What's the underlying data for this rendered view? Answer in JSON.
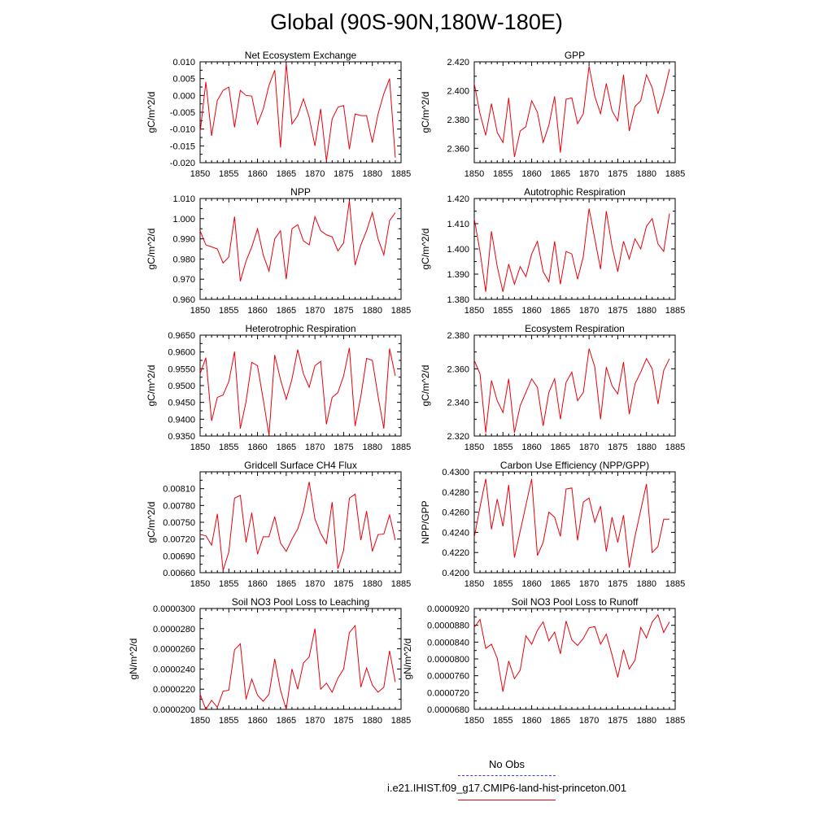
{
  "page": {
    "title": "Global (90S-90N,180W-180E)"
  },
  "legend": {
    "items": [
      {
        "label": "No Obs",
        "color": "#3a3aff",
        "style": "dashed"
      },
      {
        "label": "i.e21.IHIST.f09_g17.CMIP6-land-hist-princeton.001",
        "color": "#e8000b",
        "style": "solid"
      }
    ]
  },
  "chart_data": [
    {
      "type": "line",
      "title": "Net Ecosystem Exchange",
      "ylabel": "gC/m^2/d",
      "x_start": 1850,
      "xlim": [
        1850,
        1885
      ],
      "xticks": [
        "1850",
        "1855",
        "1860",
        "1865",
        "1870",
        "1875",
        "1880",
        "1885"
      ],
      "ylim": [
        -0.02,
        0.01
      ],
      "yticks": [
        "0.010",
        "0.005",
        "0.000",
        "-0.005",
        "-0.010",
        "-0.015",
        "-0.020"
      ],
      "series": [
        {
          "color": "#e8000b",
          "values": [
            -0.011,
            0.004,
            -0.012,
            -0.0015,
            0.0015,
            0.0025,
            -0.0095,
            0.0015,
            0.0,
            -0.0002,
            -0.0085,
            -0.004,
            0.003,
            0.0075,
            -0.0155,
            0.0095,
            -0.0085,
            -0.006,
            -0.001,
            -0.0065,
            -0.015,
            -0.004,
            -0.0195,
            -0.007,
            -0.0035,
            -0.003,
            -0.016,
            -0.0055,
            -0.006,
            -0.006,
            -0.014,
            -0.0055,
            0.0005,
            0.005,
            -0.0185
          ]
        }
      ]
    },
    {
      "type": "line",
      "title": "GPP",
      "ylabel": "gC/m^2/d",
      "x_start": 1850,
      "xlim": [
        1850,
        1885
      ],
      "xticks": [
        "1850",
        "1855",
        "1860",
        "1865",
        "1870",
        "1875",
        "1880",
        "1885"
      ],
      "ylim": [
        2.35,
        2.42
      ],
      "yticks": [
        "2.420",
        "2.400",
        "2.380",
        "2.360"
      ],
      "series": [
        {
          "color": "#e8000b",
          "values": [
            2.405,
            2.384,
            2.369,
            2.391,
            2.371,
            2.364,
            2.395,
            2.354,
            2.372,
            2.375,
            2.393,
            2.385,
            2.364,
            2.376,
            2.396,
            2.357,
            2.394,
            2.395,
            2.377,
            2.384,
            2.417,
            2.396,
            2.384,
            2.405,
            2.386,
            2.379,
            2.411,
            2.372,
            2.389,
            2.393,
            2.411,
            2.402,
            2.384,
            2.398,
            2.415
          ]
        }
      ]
    },
    {
      "type": "line",
      "title": "NPP",
      "ylabel": "gC/m^2/d",
      "x_start": 1850,
      "xlim": [
        1850,
        1885
      ],
      "xticks": [
        "1850",
        "1855",
        "1860",
        "1865",
        "1870",
        "1875",
        "1880",
        "1885"
      ],
      "ylim": [
        0.96,
        1.01
      ],
      "yticks": [
        "1.010",
        "1.000",
        "0.990",
        "0.980",
        "0.970",
        "0.960"
      ],
      "series": [
        {
          "color": "#e8000b",
          "values": [
            0.994,
            0.987,
            0.986,
            0.985,
            0.978,
            0.981,
            1.001,
            0.969,
            0.979,
            0.986,
            0.995,
            0.982,
            0.974,
            0.99,
            0.994,
            0.97,
            0.995,
            0.997,
            0.989,
            0.987,
            1.001,
            0.994,
            0.992,
            0.991,
            0.984,
            0.988,
            1.009,
            0.977,
            0.987,
            0.994,
            1.003,
            0.99,
            0.982,
            0.999,
            1.003
          ]
        }
      ]
    },
    {
      "type": "line",
      "title": "Autotrophic Respiration",
      "ylabel": "gC/m^2/d",
      "x_start": 1850,
      "xlim": [
        1850,
        1885
      ],
      "xticks": [
        "1850",
        "1855",
        "1860",
        "1865",
        "1870",
        "1875",
        "1880",
        "1885"
      ],
      "ylim": [
        1.38,
        1.42
      ],
      "yticks": [
        "1.420",
        "1.410",
        "1.400",
        "1.390",
        "1.380"
      ],
      "series": [
        {
          "color": "#e8000b",
          "values": [
            1.412,
            1.399,
            1.383,
            1.407,
            1.393,
            1.383,
            1.394,
            1.386,
            1.393,
            1.389,
            1.398,
            1.403,
            1.391,
            1.387,
            1.403,
            1.386,
            1.399,
            1.398,
            1.388,
            1.397,
            1.416,
            1.404,
            1.392,
            1.415,
            1.401,
            1.391,
            1.403,
            1.396,
            1.404,
            1.4,
            1.409,
            1.412,
            1.402,
            1.399,
            1.414
          ]
        }
      ]
    },
    {
      "type": "line",
      "title": "Heterotrophic Respiration",
      "ylabel": "gC/m^2/d",
      "x_start": 1850,
      "xlim": [
        1850,
        1885
      ],
      "xticks": [
        "1850",
        "1855",
        "1860",
        "1865",
        "1870",
        "1875",
        "1880",
        "1885"
      ],
      "ylim": [
        0.935,
        0.965
      ],
      "yticks": [
        "0.9650",
        "0.9600",
        "0.9550",
        "0.9500",
        "0.9450",
        "0.9400",
        "0.9350"
      ],
      "series": [
        {
          "color": "#e8000b",
          "values": [
            0.9535,
            0.9583,
            0.9395,
            0.9465,
            0.9472,
            0.9512,
            0.9601,
            0.9372,
            0.9452,
            0.9569,
            0.9559,
            0.9458,
            0.9352,
            0.9591,
            0.9518,
            0.9459,
            0.9519,
            0.9607,
            0.9535,
            0.9495,
            0.9559,
            0.9572,
            0.9385,
            0.9465,
            0.9479,
            0.9529,
            0.9612,
            0.938,
            0.9468,
            0.9581,
            0.9575,
            0.9468,
            0.9372,
            0.961,
            0.9529
          ]
        }
      ]
    },
    {
      "type": "line",
      "title": "Ecosystem Respiration",
      "ylabel": "gC/m^2/d",
      "x_start": 1850,
      "xlim": [
        1850,
        1885
      ],
      "xticks": [
        "1850",
        "1855",
        "1860",
        "1865",
        "1870",
        "1875",
        "1880",
        "1885"
      ],
      "ylim": [
        2.32,
        2.38
      ],
      "yticks": [
        "2.380",
        "2.360",
        "2.340",
        "2.320"
      ],
      "series": [
        {
          "color": "#e8000b",
          "values": [
            2.365,
            2.357,
            2.322,
            2.353,
            2.341,
            2.334,
            2.354,
            2.322,
            2.338,
            2.346,
            2.354,
            2.349,
            2.326,
            2.346,
            2.354,
            2.33,
            2.352,
            2.358,
            2.341,
            2.346,
            2.372,
            2.361,
            2.33,
            2.361,
            2.35,
            2.345,
            2.364,
            2.333,
            2.351,
            2.358,
            2.366,
            2.36,
            2.339,
            2.359,
            2.366
          ]
        }
      ]
    },
    {
      "type": "line",
      "title": "Gridcell Surface CH4 Flux",
      "ylabel": "gC/m^2/d",
      "x_start": 1850,
      "xlim": [
        1850,
        1885
      ],
      "xticks": [
        "1850",
        "1855",
        "1860",
        "1865",
        "1870",
        "1875",
        "1880",
        "1885"
      ],
      "ylim": [
        0.0066,
        0.0084
      ],
      "yticks": [
        "0.00810",
        "0.00780",
        "0.00750",
        "0.00720",
        "0.00690",
        "0.00660"
      ],
      "series": [
        {
          "color": "#e8000b",
          "values": [
            0.00728,
            0.00726,
            0.00709,
            0.00765,
            0.00664,
            0.00697,
            0.00793,
            0.00798,
            0.00714,
            0.00767,
            0.00693,
            0.00724,
            0.00724,
            0.0076,
            0.00713,
            0.00698,
            0.0072,
            0.00738,
            0.0077,
            0.00822,
            0.00756,
            0.0073,
            0.00712,
            0.00786,
            0.00667,
            0.007,
            0.00793,
            0.008,
            0.00718,
            0.0077,
            0.00698,
            0.00728,
            0.00729,
            0.00763,
            0.00718
          ]
        }
      ]
    },
    {
      "type": "line",
      "title": "Carbon Use Efficiency (NPP/GPP)",
      "ylabel": "NPP/GPP",
      "x_start": 1850,
      "xlim": [
        1850,
        1885
      ],
      "xticks": [
        "1850",
        "1855",
        "1860",
        "1865",
        "1870",
        "1875",
        "1880",
        "1885"
      ],
      "ylim": [
        0.42,
        0.43
      ],
      "yticks": [
        "0.4300",
        "0.4280",
        "0.4260",
        "0.4240",
        "0.4220",
        "0.4200"
      ],
      "series": [
        {
          "color": "#e8000b",
          "values": [
            0.4235,
            0.4265,
            0.4293,
            0.4243,
            0.4273,
            0.4246,
            0.4287,
            0.4215,
            0.4241,
            0.4267,
            0.4293,
            0.4217,
            0.423,
            0.426,
            0.4255,
            0.4236,
            0.4283,
            0.4284,
            0.4232,
            0.427,
            0.4274,
            0.425,
            0.4266,
            0.4221,
            0.4255,
            0.423,
            0.4257,
            0.4205,
            0.4236,
            0.4262,
            0.4288,
            0.422,
            0.4226,
            0.4253,
            0.4253
          ]
        }
      ]
    },
    {
      "type": "line",
      "title": "Soil NO3 Pool Loss to Leaching",
      "ylabel": "gN/m^2/d",
      "x_start": 1850,
      "xlim": [
        1850,
        1885
      ],
      "xticks": [
        "1850",
        "1855",
        "1860",
        "1865",
        "1870",
        "1875",
        "1880",
        "1885"
      ],
      "ylim": [
        2e-05,
        3e-05
      ],
      "yticks": [
        "0.0000300",
        "0.0000280",
        "0.0000260",
        "0.0000240",
        "0.0000220",
        "0.0000200"
      ],
      "series": [
        {
          "color": "#e8000b",
          "values": [
            2.15e-05,
            2e-05,
            2.09e-05,
            2.02e-05,
            2.18e-05,
            2.19e-05,
            2.59e-05,
            2.65e-05,
            2.1e-05,
            2.3e-05,
            2.14e-05,
            2.08e-05,
            2.15e-05,
            2.5e-05,
            2.19e-05,
            2e-05,
            2.4e-05,
            2.2e-05,
            2.46e-05,
            2.52e-05,
            2.8e-05,
            2.2e-05,
            2.26e-05,
            2.17e-05,
            2.31e-05,
            2.4e-05,
            2.76e-05,
            2.83e-05,
            2.22e-05,
            2.41e-05,
            2.24e-05,
            2.17e-05,
            2.22e-05,
            2.58e-05,
            2.27e-05
          ]
        }
      ]
    },
    {
      "type": "line",
      "title": "Soil NO3 Pool Loss to Runoff",
      "ylabel": "gN/m^2/d",
      "x_start": 1850,
      "xlim": [
        1850,
        1885
      ],
      "xticks": [
        "1850",
        "1855",
        "1860",
        "1865",
        "1870",
        "1875",
        "1880",
        "1885"
      ],
      "ylim": [
        6.8e-05,
        9.2e-05
      ],
      "yticks": [
        "0.0000920",
        "0.0000880",
        "0.0000840",
        "0.0000800",
        "0.0000760",
        "0.0000720",
        "0.0000680"
      ],
      "series": [
        {
          "color": "#e8000b",
          "values": [
            8.75e-05,
            8.94e-05,
            8.25e-05,
            8.35e-05,
            8.02e-05,
            7.22e-05,
            7.95e-05,
            7.53e-05,
            7.73e-05,
            8.55e-05,
            8.35e-05,
            8.68e-05,
            8.88e-05,
            8.43e-05,
            8.64e-05,
            8.12e-05,
            8.9e-05,
            8.45e-05,
            8.32e-05,
            8.49e-05,
            8.74e-05,
            8.77e-05,
            8.35e-05,
            8.59e-05,
            8.1e-05,
            7.56e-05,
            8.22e-05,
            7.76e-05,
            7.97e-05,
            8.75e-05,
            8.5e-05,
            8.88e-05,
            9.05e-05,
            8.63e-05,
            8.88e-05
          ]
        }
      ]
    }
  ]
}
